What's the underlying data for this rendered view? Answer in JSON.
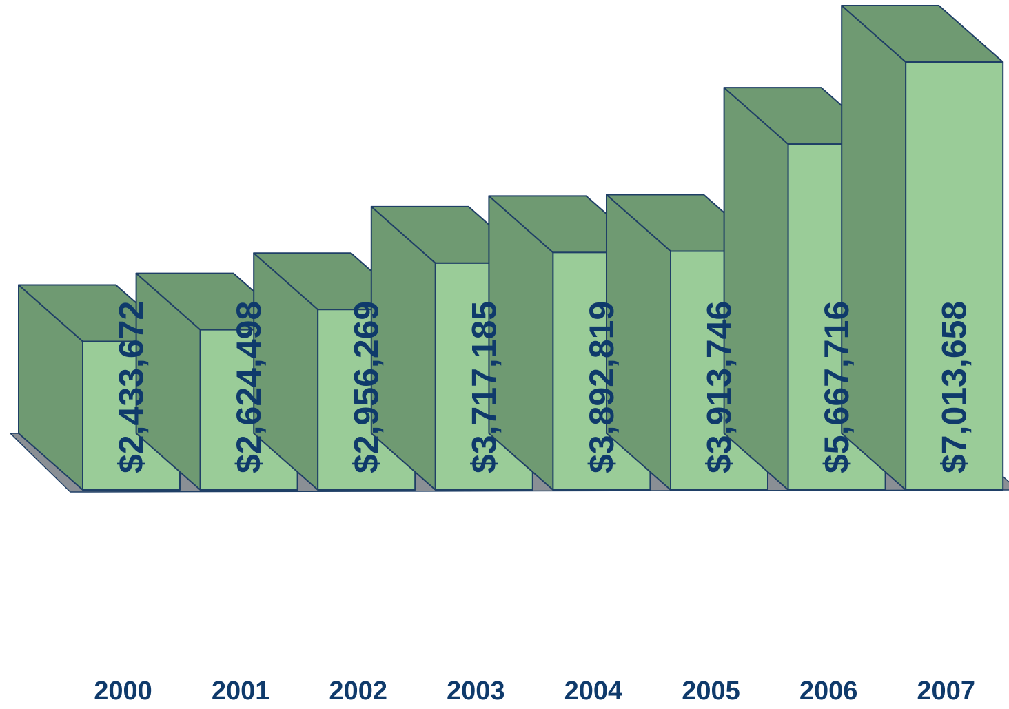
{
  "chart_data": {
    "type": "bar",
    "style": "3d-column",
    "categories": [
      "2000",
      "2001",
      "2002",
      "2003",
      "2004",
      "2005",
      "2006",
      "2007"
    ],
    "values": [
      2433672,
      2624498,
      2956269,
      3717185,
      3892819,
      3913746,
      5667716,
      7013658
    ],
    "data_labels": [
      "$2,433,672",
      "$2,624,498",
      "$2,956,269",
      "$3,717,185",
      "$3,892,819",
      "$3,913,746",
      "$5,667,716",
      "$7,013,658"
    ],
    "data_label_orientation": "vertical",
    "grid": false,
    "legend": "none",
    "colors": {
      "front": "#9acc98",
      "side": "#6f9a72",
      "top": "#6f9a72",
      "outline": "#1f3f66",
      "floor": "#8a8f95",
      "label": "#0f3a6b"
    }
  }
}
